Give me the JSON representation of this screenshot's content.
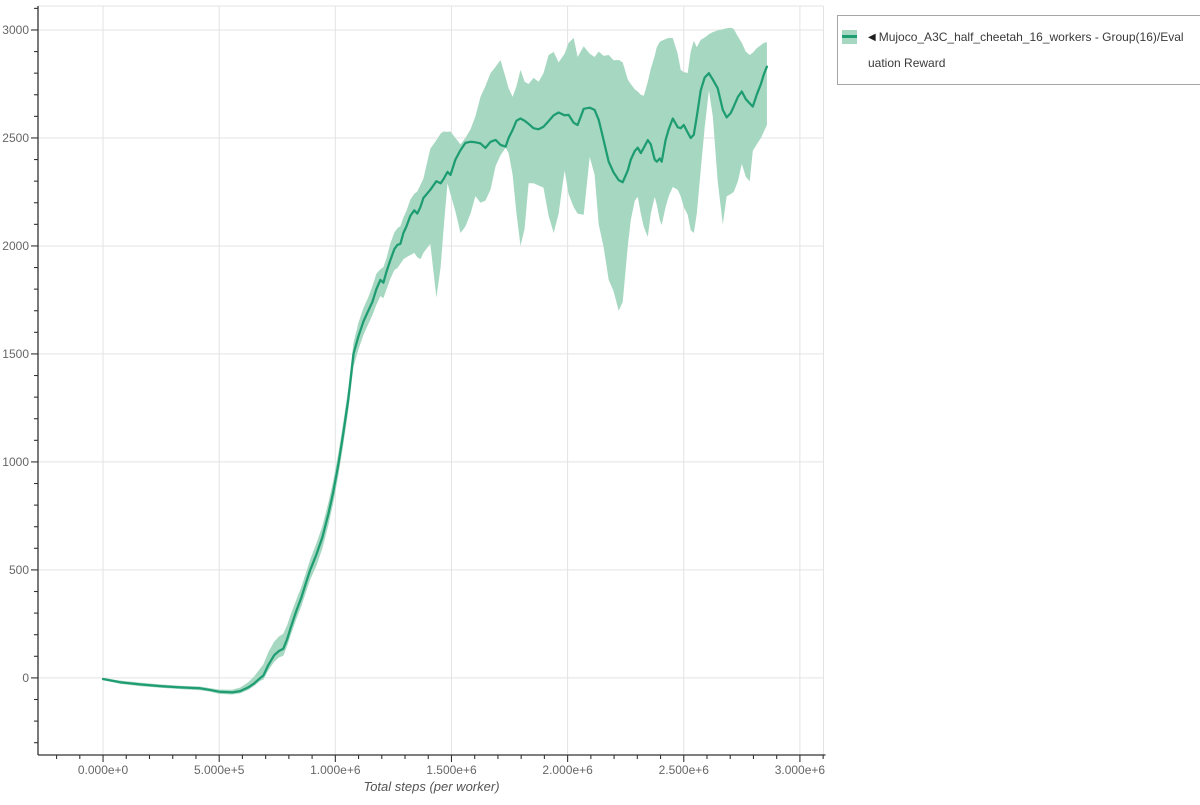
{
  "page": {
    "background": "#ffffff"
  },
  "legend": {
    "collapse_icon": "◀",
    "label": "Mujoco_A3C_half_cheetah_16_workers - Group(16)/Evaluation Reward"
  },
  "chart_data": {
    "type": "line",
    "title": "",
    "xlabel": "Total steps (per worker)",
    "ylabel": "",
    "grid": true,
    "legend_position": "outside-top-right",
    "x_tick_labels": [
      "0.000e+0",
      "5.000e+5",
      "1.000e+6",
      "1.500e+6",
      "2.000e+6",
      "2.500e+6",
      "3.000e+6"
    ],
    "x_tick_values": [
      0,
      500000,
      1000000,
      1500000,
      2000000,
      2500000,
      3000000
    ],
    "y_tick_values": [
      0,
      500,
      1000,
      1500,
      2000,
      2500,
      3000
    ],
    "x_minor_step": 100000,
    "y_minor_step": 100,
    "xlim": [
      -280000,
      3108000
    ],
    "ylim": [
      -357,
      3111
    ],
    "colors": {
      "line": "#1e9c72",
      "band": "#a6d7c1",
      "grid": "#e3e3e3",
      "axis": "#333333",
      "tick_label": "#666666",
      "axis_title": "#555555",
      "legend_border": "#a6a6a6",
      "legend_text": "#3a3a3a"
    },
    "series": [
      {
        "name": "Mujoco_A3C_half_cheetah_16_workers - Group(16)/Evaluation Reward",
        "x": [
          0,
          73000,
          159000,
          246000,
          332000,
          418000,
          457000,
          500000,
          556000,
          590000,
          625000,
          651000,
          677000,
          690000,
          712000,
          737000,
          758000,
          776000,
          793000,
          810000,
          832000,
          853000,
          875000,
          892000,
          918000,
          944000,
          970000,
          991000,
          1013000,
          1034000,
          1056000,
          1078000,
          1099000,
          1121000,
          1142000,
          1159000,
          1177000,
          1194000,
          1207000,
          1220000,
          1237000,
          1254000,
          1267000,
          1280000,
          1293000,
          1306000,
          1323000,
          1340000,
          1353000,
          1366000,
          1379000,
          1409000,
          1435000,
          1453000,
          1466000,
          1483000,
          1496000,
          1517000,
          1539000,
          1560000,
          1582000,
          1603000,
          1625000,
          1646000,
          1668000,
          1690000,
          1711000,
          1733000,
          1746000,
          1763000,
          1780000,
          1797000,
          1815000,
          1832000,
          1853000,
          1875000,
          1896000,
          1918000,
          1940000,
          1961000,
          1987000,
          2004000,
          2026000,
          2043000,
          2069000,
          2095000,
          2116000,
          2134000,
          2155000,
          2177000,
          2198000,
          2220000,
          2237000,
          2259000,
          2272000,
          2289000,
          2302000,
          2315000,
          2328000,
          2345000,
          2358000,
          2375000,
          2384000,
          2397000,
          2405000,
          2422000,
          2435000,
          2453000,
          2474000,
          2487000,
          2500000,
          2517000,
          2530000,
          2543000,
          2556000,
          2573000,
          2590000,
          2608000,
          2625000,
          2646000,
          2668000,
          2685000,
          2702000,
          2715000,
          2733000,
          2750000,
          2767000,
          2784000,
          2797000,
          2814000,
          2832000,
          2845000,
          2858000
        ],
        "mean": [
          -5,
          -20,
          -30,
          -38,
          -44,
          -48,
          -55,
          -64,
          -67,
          -61,
          -44,
          -25,
          0,
          10,
          60,
          105,
          125,
          135,
          180,
          240,
          310,
          370,
          445,
          500,
          570,
          650,
          760,
          860,
          990,
          1130,
          1290,
          1500,
          1580,
          1650,
          1700,
          1740,
          1800,
          1843,
          1830,
          1880,
          1935,
          1985,
          2005,
          2010,
          2060,
          2090,
          2140,
          2165,
          2150,
          2180,
          2222,
          2260,
          2300,
          2290,
          2310,
          2343,
          2329,
          2400,
          2444,
          2477,
          2482,
          2480,
          2475,
          2454,
          2482,
          2491,
          2468,
          2460,
          2500,
          2537,
          2580,
          2590,
          2580,
          2565,
          2545,
          2540,
          2552,
          2578,
          2605,
          2618,
          2605,
          2607,
          2570,
          2560,
          2635,
          2640,
          2630,
          2584,
          2490,
          2390,
          2340,
          2305,
          2295,
          2350,
          2400,
          2440,
          2455,
          2430,
          2455,
          2490,
          2470,
          2400,
          2390,
          2405,
          2390,
          2490,
          2540,
          2590,
          2550,
          2545,
          2560,
          2525,
          2500,
          2515,
          2600,
          2720,
          2780,
          2800,
          2770,
          2730,
          2630,
          2595,
          2615,
          2645,
          2690,
          2715,
          2680,
          2660,
          2645,
          2700,
          2750,
          2795,
          2830
        ],
        "lower": [
          -10,
          -28,
          -38,
          -46,
          -52,
          -57,
          -63,
          -74,
          -77,
          -72,
          -56,
          -37,
          -14,
          -8,
          35,
          75,
          95,
          103,
          148,
          205,
          272,
          330,
          402,
          455,
          518,
          598,
          708,
          808,
          938,
          1078,
          1238,
          1440,
          1518,
          1588,
          1638,
          1678,
          1728,
          1768,
          1758,
          1798,
          1848,
          1888,
          1898,
          1918,
          1938,
          1948,
          1958,
          1968,
          1948,
          1938,
          1968,
          2010,
          1760,
          1900,
          2080,
          2290,
          2240,
          2160,
          2060,
          2090,
          2150,
          2230,
          2200,
          2210,
          2260,
          2370,
          2420,
          2455,
          2430,
          2330,
          2150,
          2000,
          2080,
          2290,
          2290,
          2280,
          2270,
          2140,
          2060,
          2150,
          2350,
          2240,
          2180,
          2150,
          2144,
          2412,
          2330,
          2100,
          1995,
          1843,
          1790,
          1700,
          1740,
          2000,
          2120,
          2210,
          2227,
          2150,
          2088,
          2042,
          2150,
          2227,
          2190,
          2120,
          2097,
          2180,
          2230,
          2273,
          2260,
          2230,
          2180,
          2144,
          2074,
          2060,
          2150,
          2350,
          2550,
          2720,
          2600,
          2300,
          2100,
          2230,
          2240,
          2250,
          2300,
          2380,
          2320,
          2300,
          2440,
          2470,
          2500,
          2530,
          2560
        ],
        "upper": [
          0,
          -12,
          -22,
          -30,
          -36,
          -40,
          -47,
          -54,
          -55,
          -45,
          -20,
          8,
          45,
          62,
          120,
          168,
          192,
          205,
          245,
          300,
          362,
          420,
          492,
          548,
          622,
          702,
          812,
          912,
          1042,
          1182,
          1342,
          1552,
          1642,
          1712,
          1762,
          1812,
          1872,
          1892,
          1902,
          1942,
          2012,
          2062,
          2082,
          2092,
          2132,
          2162,
          2215,
          2242,
          2252,
          2282,
          2312,
          2450,
          2490,
          2520,
          2530,
          2528,
          2530,
          2500,
          2470,
          2500,
          2540,
          2600,
          2690,
          2740,
          2800,
          2830,
          2861,
          2780,
          2730,
          2690,
          2740,
          2815,
          2760,
          2750,
          2778,
          2760,
          2800,
          2884,
          2898,
          2850,
          2890,
          2940,
          2963,
          2875,
          2925,
          2890,
          2875,
          2900,
          2880,
          2884,
          2860,
          2861,
          2850,
          2770,
          2750,
          2725,
          2715,
          2700,
          2695,
          2760,
          2820,
          2880,
          2920,
          2945,
          2950,
          2958,
          2963,
          2963,
          2890,
          2815,
          2805,
          2801,
          2900,
          2950,
          2920,
          2954,
          2965,
          2980,
          2990,
          2998,
          3003,
          3008,
          3010,
          3005,
          2970,
          2940,
          2900,
          2884,
          2895,
          2915,
          2930,
          2940,
          2944
        ]
      }
    ]
  }
}
